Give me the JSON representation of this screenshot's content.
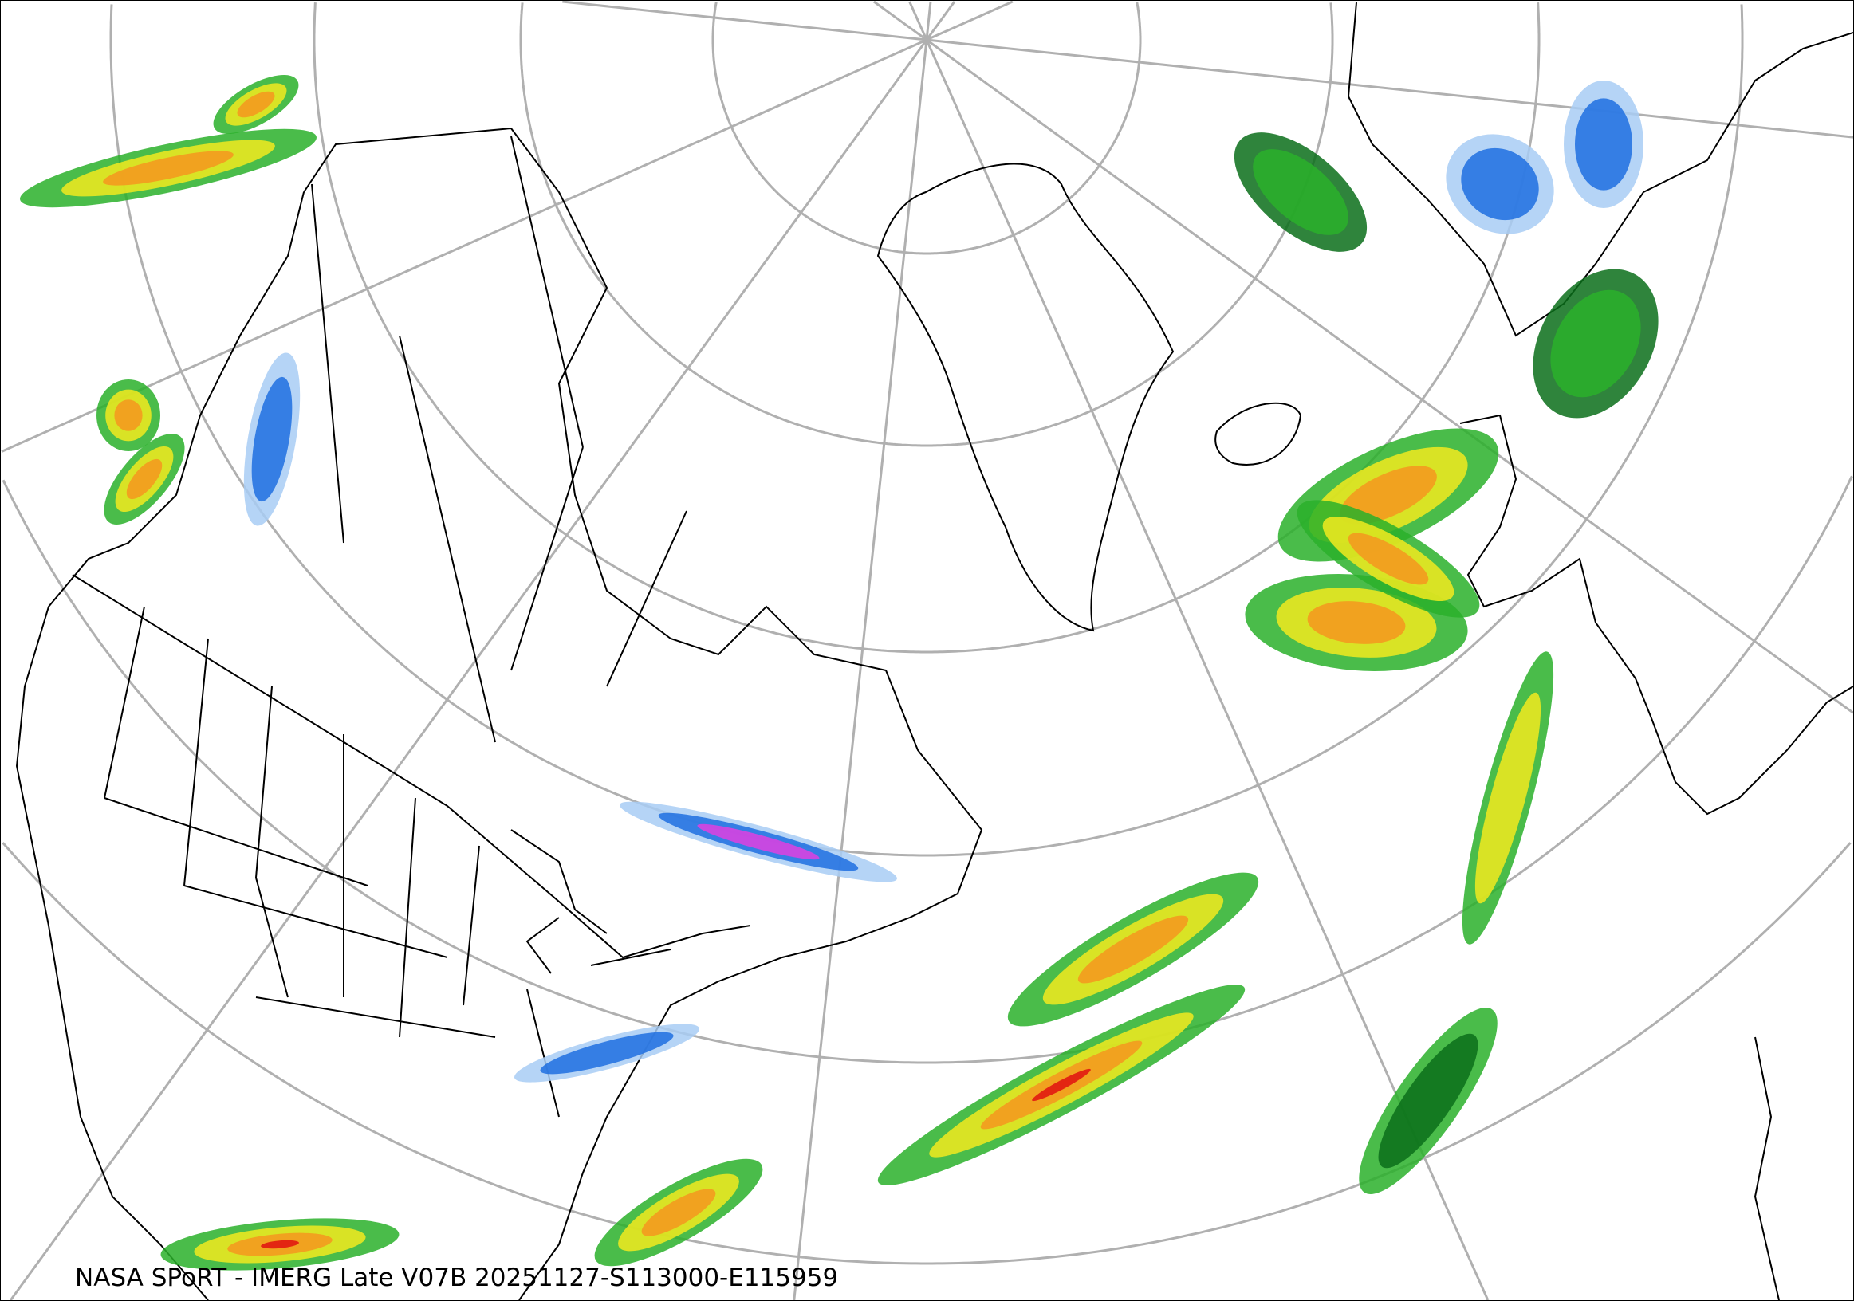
{
  "caption": "NASA SPoRT - IMERG Late V07B 20251127-S113000-E115959",
  "map": {
    "projection": "north-polar stereographic",
    "product": "IMERG Late V07B precipitation",
    "colors": {
      "graticule": "#b0b0b0",
      "borders": "#000000",
      "light_snow": "#a8cdf5",
      "snow": "#1e6fe0",
      "heavy_snow": "#e040e0",
      "light_rain": "#2ab02a",
      "rain_dark": "#0a6e1a",
      "moderate_rain": "#f2ea1e",
      "heavy_rain": "#f4961e",
      "very_heavy_rain": "#e01010"
    }
  }
}
